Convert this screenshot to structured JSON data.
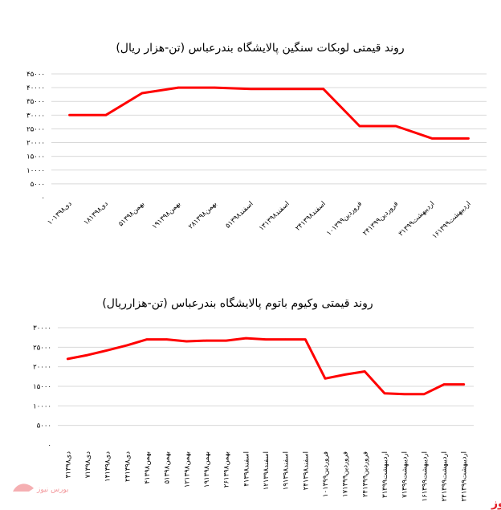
{
  "colors": {
    "series": "#ff0000",
    "grid": "#d9d9d9",
    "brand": "#e31b23"
  },
  "chart_data": [
    {
      "type": "line",
      "title": "روند قیمتی لوبکات سنگین پالایشگاه بندرعباس (تن-هزار ریال)",
      "ylim": [
        0,
        45000
      ],
      "y_ticks": [
        "۰",
        "۵۰۰۰",
        "۱۰۰۰۰",
        "۱۵۰۰۰",
        "۲۰۰۰۰",
        "۲۵۰۰۰",
        "۳۰۰۰۰",
        "۳۵۰۰۰",
        "۴۰۰۰۰",
        "۴۵۰۰۰"
      ],
      "grid": true,
      "categories": [
        "۱۰دی۱۳۹۸",
        "۱۸دی۱۳۹۸",
        "۵بهمن۱۳۹۸",
        "۱۹بهمن۱۳۹۸",
        "۲۸بهمن۱۳۹۸",
        "۵اسفند۱۳۹۸",
        "۱۳اسفند۱۳۹۸",
        "۲۴اسفند۱۳۹۸",
        "۱۰فروردین۱۳۹۹",
        "۲۴فروردین۱۳۹۹",
        "۳اردیبهشت۱۳۹۹",
        "۱۶اردیبهشت۱۳۹۹"
      ],
      "series": [
        {
          "values": [
            30000,
            30000,
            38000,
            40000,
            40000,
            39500,
            39500,
            39500,
            26000,
            26000,
            21500,
            21500
          ]
        }
      ]
    },
    {
      "type": "line",
      "title": "روند قیمتی وکیوم باتوم پالایشگاه بندرعباس (تن-هزارریال)",
      "ylim": [
        0,
        30000
      ],
      "y_ticks": [
        "۰",
        "۵۰۰۰",
        "۱۰۰۰۰",
        "۱۵۰۰۰",
        "۲۰۰۰۰",
        "۲۵۰۰۰",
        "۳۰۰۰۰"
      ],
      "grid": true,
      "categories": [
        "۳دی۱۳۹۸",
        "۷دی۱۳۹۸",
        "۱۴دی۱۳۹۸",
        "۲۴دی۱۳۹۸",
        "۴بهمن۱۳۹۸",
        "۵بهمن۱۳۹۸",
        "۱۲بهمن۱۳۹۸",
        "۱۹بهمن۱۳۹۸",
        "۲۶بهمن۱۳۹۸",
        "۴اسفند۱۳۹۸",
        "۱۲اسفند۱۳۹۸",
        "۱۹اسفند۱۳۹۸",
        "۲۴اسفند۱۳۹۸",
        "۱۰فروردین۱۳۹۹",
        "۱۷فروردین۱۳۹۹",
        "۲۴فروردین۱۳۹۹",
        "۳اردیبهشت۱۳۹۹",
        "۷اردیبهشت۱۳۹۹",
        "۱۶اردیبهشت۱۳۹۹",
        "۲۲اردیبهشت۱۳۹۹",
        "۲۴اردیبهشت۱۳۹۹"
      ],
      "series": [
        {
          "values": [
            22000,
            23000,
            24200,
            25500,
            27000,
            27000,
            26500,
            26700,
            26700,
            27300,
            27000,
            27000,
            27000,
            17000,
            18000,
            18800,
            13200,
            13000,
            13000,
            15500,
            15500
          ]
        }
      ]
    }
  ],
  "brand": {
    "name": "بورس نیوز",
    "logo_text": "بورس نیوز"
  }
}
